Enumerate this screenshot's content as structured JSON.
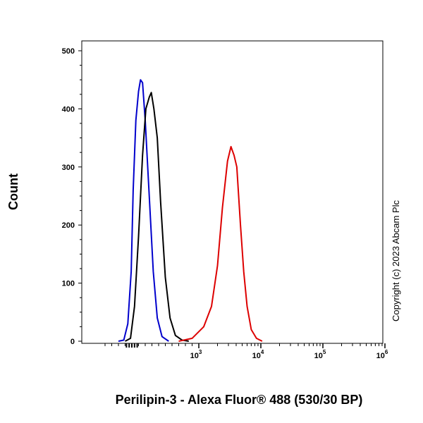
{
  "chart_data": {
    "type": "line",
    "xlabel": "Perilipin-3 - Alexa Fluor® 488 (530/30 BP)",
    "ylabel": "Count",
    "ylim": [
      0,
      500
    ],
    "y_ticks": [
      0,
      100,
      200,
      300,
      400,
      500
    ],
    "x_ticks": [
      {
        "base": "10",
        "exp": "3",
        "value": 1000
      },
      {
        "base": "10",
        "exp": "4",
        "value": 10000
      },
      {
        "base": "10",
        "exp": "5",
        "value": 100000
      },
      {
        "base": "10",
        "exp": "6",
        "value": 1000000
      }
    ],
    "x_scale": "biexponential",
    "grid": false,
    "legend": "none",
    "copyright": "Copyright (c) 2023 Abcam Plc",
    "series": [
      {
        "color": "#0000cc",
        "points": [
          [
            -200,
            0
          ],
          [
            -120,
            2
          ],
          [
            -60,
            30
          ],
          [
            -10,
            120
          ],
          [
            20,
            260
          ],
          [
            60,
            380
          ],
          [
            100,
            430
          ],
          [
            130,
            450
          ],
          [
            160,
            445
          ],
          [
            200,
            380
          ],
          [
            260,
            250
          ],
          [
            320,
            120
          ],
          [
            380,
            40
          ],
          [
            450,
            8
          ],
          [
            550,
            0
          ]
        ]
      },
      {
        "color": "#000000",
        "points": [
          [
            -100,
            0
          ],
          [
            -20,
            5
          ],
          [
            40,
            60
          ],
          [
            100,
            180
          ],
          [
            160,
            320
          ],
          [
            210,
            400
          ],
          [
            260,
            420
          ],
          [
            290,
            428
          ],
          [
            330,
            400
          ],
          [
            380,
            350
          ],
          [
            430,
            240
          ],
          [
            500,
            110
          ],
          [
            570,
            40
          ],
          [
            650,
            10
          ],
          [
            750,
            2
          ],
          [
            850,
            0
          ]
        ]
      },
      {
        "color": "#dd0000",
        "points": [
          [
            700,
            0
          ],
          [
            900,
            5
          ],
          [
            1200,
            25
          ],
          [
            1600,
            60
          ],
          [
            2000,
            130
          ],
          [
            2400,
            230
          ],
          [
            2900,
            310
          ],
          [
            3300,
            335
          ],
          [
            3700,
            320
          ],
          [
            4100,
            300
          ],
          [
            4700,
            200
          ],
          [
            5300,
            120
          ],
          [
            6000,
            60
          ],
          [
            7000,
            20
          ],
          [
            8500,
            5
          ],
          [
            10500,
            0
          ]
        ]
      }
    ]
  }
}
